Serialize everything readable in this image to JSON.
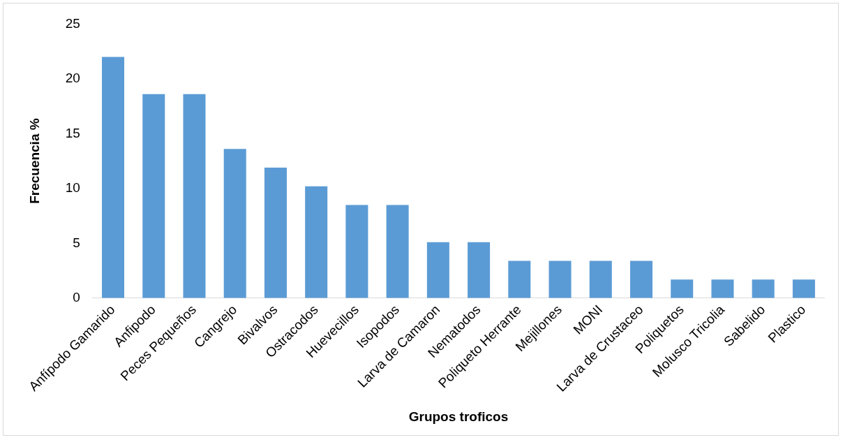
{
  "chart_data": {
    "type": "bar",
    "xlabel": "Grupos troficos",
    "ylabel": "Frecuencia %",
    "categories": [
      "Anfípodo Gamarido",
      "Anfipodo",
      "Peces Pequeños",
      "Cangrejo",
      "Bivalvos",
      "Ostracodos",
      "Huevecillos",
      "Isopodos",
      "Larva de Camaron",
      "Nematodos",
      "Poliqueto Herrante",
      "Mejillones",
      "MONI",
      "Larva de Crustaceo",
      "Poliquetos",
      "Molusco Tricolia",
      "Sabelido",
      "Plastico"
    ],
    "values": [
      22.0,
      18.6,
      18.6,
      13.6,
      11.9,
      10.2,
      8.5,
      8.5,
      5.1,
      5.1,
      3.4,
      3.4,
      3.4,
      3.4,
      1.7,
      1.7,
      1.7,
      1.7
    ],
    "color": "#5b9bd5",
    "ylim": [
      0,
      25
    ],
    "yticks": [
      0,
      5,
      10,
      15,
      20,
      25
    ],
    "grid": false,
    "legend": false
  }
}
